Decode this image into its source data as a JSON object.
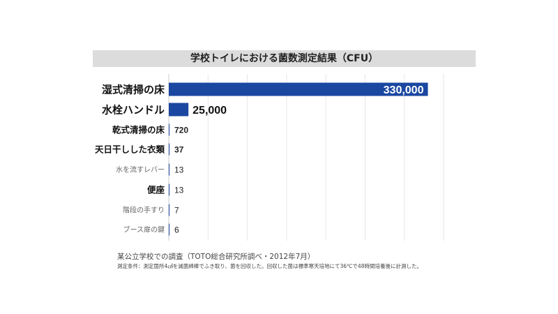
{
  "chart_data": {
    "type": "bar",
    "orientation": "horizontal",
    "title": "学校トイレにおける菌数測定結果（CFU）",
    "categories": [
      "湿式清掃の床",
      "水栓ハンドル",
      "乾式清掃の床",
      "天日干しした衣類",
      "水を流すレバー",
      "便座",
      "階段の手すり",
      "ブース扉の鍵"
    ],
    "values": [
      330000,
      25000,
      720,
      37,
      13,
      13,
      7,
      6
    ],
    "value_labels": [
      "330,000",
      "25,000",
      "720",
      "37",
      "13",
      "13",
      "7",
      "6"
    ],
    "xlim": [
      0,
      350000
    ],
    "grid": true,
    "bar_color": "#1a47a0"
  },
  "notes": {
    "source": "某公立学校での調査（TOTO総合研究所調べ・2012年7月）",
    "condition": "測定条件：測定箇所4㎠を滅菌綿棒でふき取り、菌を回収した。回収した菌は標準寒天培地にて36℃で48時間培養後に計測した。"
  }
}
